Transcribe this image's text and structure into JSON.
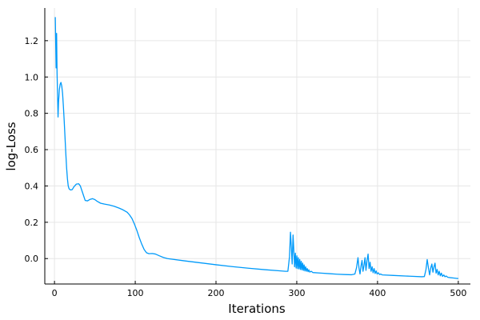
{
  "chart_data": {
    "type": "line",
    "title": "",
    "xlabel": "Iterations",
    "ylabel": "log-Loss",
    "xlim": [
      -12,
      515
    ],
    "ylim": [
      -0.14,
      1.38
    ],
    "x_ticks": [
      0,
      100,
      200,
      300,
      400,
      500
    ],
    "y_ticks": [
      0.0,
      0.2,
      0.4,
      0.6,
      0.8,
      1.0,
      1.2
    ],
    "x_tick_labels": [
      "0",
      "100",
      "200",
      "300",
      "400",
      "500"
    ],
    "y_tick_labels": [
      "0.0",
      "0.2",
      "0.4",
      "0.6",
      "0.8",
      "1.0",
      "1.2"
    ],
    "grid": true,
    "legend": "none",
    "series": [
      {
        "color": "#009AFA",
        "points": [
          [
            1,
            1.33
          ],
          [
            2,
            1.05
          ],
          [
            2.6,
            1.24
          ],
          [
            3.2,
            1.02
          ],
          [
            3.8,
            0.9
          ],
          [
            4.4,
            0.78
          ],
          [
            5,
            0.86
          ],
          [
            6,
            0.93
          ],
          [
            7,
            0.96
          ],
          [
            8,
            0.97
          ],
          [
            9,
            0.95
          ],
          [
            10,
            0.91
          ],
          [
            11,
            0.84
          ],
          [
            12,
            0.76
          ],
          [
            13,
            0.67
          ],
          [
            14,
            0.58
          ],
          [
            15,
            0.5
          ],
          [
            16,
            0.44
          ],
          [
            17,
            0.4
          ],
          [
            18,
            0.385
          ],
          [
            19,
            0.38
          ],
          [
            20,
            0.378
          ],
          [
            22,
            0.38
          ],
          [
            24,
            0.395
          ],
          [
            27,
            0.41
          ],
          [
            30,
            0.412
          ],
          [
            32,
            0.4
          ],
          [
            35,
            0.36
          ],
          [
            38,
            0.32
          ],
          [
            41,
            0.318
          ],
          [
            44,
            0.326
          ],
          [
            47,
            0.33
          ],
          [
            50,
            0.325
          ],
          [
            53,
            0.315
          ],
          [
            57,
            0.305
          ],
          [
            62,
            0.3
          ],
          [
            68,
            0.295
          ],
          [
            74,
            0.288
          ],
          [
            80,
            0.278
          ],
          [
            85,
            0.268
          ],
          [
            90,
            0.255
          ],
          [
            93,
            0.24
          ],
          [
            96,
            0.22
          ],
          [
            99,
            0.19
          ],
          [
            102,
            0.155
          ],
          [
            105,
            0.115
          ],
          [
            108,
            0.08
          ],
          [
            111,
            0.05
          ],
          [
            114,
            0.032
          ],
          [
            117,
            0.027
          ],
          [
            121,
            0.028
          ],
          [
            125,
            0.025
          ],
          [
            130,
            0.015
          ],
          [
            135,
            0.006
          ],
          [
            140,
            0.0
          ],
          [
            160,
            -0.012
          ],
          [
            180,
            -0.023
          ],
          [
            200,
            -0.034
          ],
          [
            220,
            -0.044
          ],
          [
            240,
            -0.053
          ],
          [
            260,
            -0.061
          ],
          [
            280,
            -0.068
          ],
          [
            286,
            -0.07
          ],
          [
            289,
            -0.07
          ],
          [
            291,
            0.01
          ],
          [
            292.2,
            0.145
          ],
          [
            293.3,
            0.06
          ],
          [
            294.3,
            -0.03
          ],
          [
            295.4,
            0.13
          ],
          [
            296.4,
            0.04
          ],
          [
            297.3,
            -0.045
          ],
          [
            298.3,
            0.03
          ],
          [
            299.2,
            -0.052
          ],
          [
            300.1,
            0.015
          ],
          [
            301,
            -0.055
          ],
          [
            301.9,
            0.005
          ],
          [
            302.8,
            -0.057
          ],
          [
            303.7,
            -0.005
          ],
          [
            304.6,
            -0.06
          ],
          [
            305.5,
            -0.015
          ],
          [
            306.4,
            -0.062
          ],
          [
            307.3,
            -0.025
          ],
          [
            308.2,
            -0.065
          ],
          [
            309.1,
            -0.035
          ],
          [
            310,
            -0.068
          ],
          [
            311,
            -0.045
          ],
          [
            312,
            -0.07
          ],
          [
            313,
            -0.055
          ],
          [
            314,
            -0.072
          ],
          [
            315,
            -0.062
          ],
          [
            316,
            -0.074
          ],
          [
            318,
            -0.07
          ],
          [
            320,
            -0.077
          ],
          [
            330,
            -0.08
          ],
          [
            340,
            -0.083
          ],
          [
            350,
            -0.086
          ],
          [
            360,
            -0.088
          ],
          [
            368,
            -0.089
          ],
          [
            372,
            -0.085
          ],
          [
            374,
            -0.05
          ],
          [
            375.8,
            0.005
          ],
          [
            377,
            -0.05
          ],
          [
            378.3,
            -0.085
          ],
          [
            379.6,
            -0.04
          ],
          [
            380.8,
            -0.01
          ],
          [
            382,
            -0.07
          ],
          [
            383.3,
            -0.035
          ],
          [
            384.5,
            0.005
          ],
          [
            385.7,
            -0.065
          ],
          [
            387,
            -0.01
          ],
          [
            388.3,
            0.025
          ],
          [
            389.5,
            -0.055
          ],
          [
            390.8,
            -0.02
          ],
          [
            392,
            -0.07
          ],
          [
            393.3,
            -0.045
          ],
          [
            394.5,
            -0.078
          ],
          [
            395.8,
            -0.055
          ],
          [
            397,
            -0.082
          ],
          [
            398.3,
            -0.068
          ],
          [
            399.5,
            -0.085
          ],
          [
            401,
            -0.078
          ],
          [
            402.5,
            -0.088
          ],
          [
            404,
            -0.085
          ],
          [
            406,
            -0.09
          ],
          [
            420,
            -0.093
          ],
          [
            440,
            -0.097
          ],
          [
            455,
            -0.1
          ],
          [
            458,
            -0.099
          ],
          [
            460,
            -0.06
          ],
          [
            461.5,
            -0.005
          ],
          [
            463,
            -0.05
          ],
          [
            464.5,
            -0.09
          ],
          [
            466,
            -0.05
          ],
          [
            467.3,
            -0.03
          ],
          [
            468.6,
            -0.075
          ],
          [
            469.9,
            -0.045
          ],
          [
            471.2,
            -0.025
          ],
          [
            472.5,
            -0.08
          ],
          [
            473.8,
            -0.06
          ],
          [
            475.1,
            -0.09
          ],
          [
            476.4,
            -0.07
          ],
          [
            477.7,
            -0.095
          ],
          [
            479,
            -0.08
          ],
          [
            480.5,
            -0.098
          ],
          [
            482,
            -0.09
          ],
          [
            483.5,
            -0.1
          ],
          [
            485,
            -0.096
          ],
          [
            487,
            -0.103
          ],
          [
            490,
            -0.105
          ],
          [
            494,
            -0.107
          ],
          [
            498,
            -0.109
          ],
          [
            500,
            -0.11
          ]
        ]
      }
    ]
  }
}
